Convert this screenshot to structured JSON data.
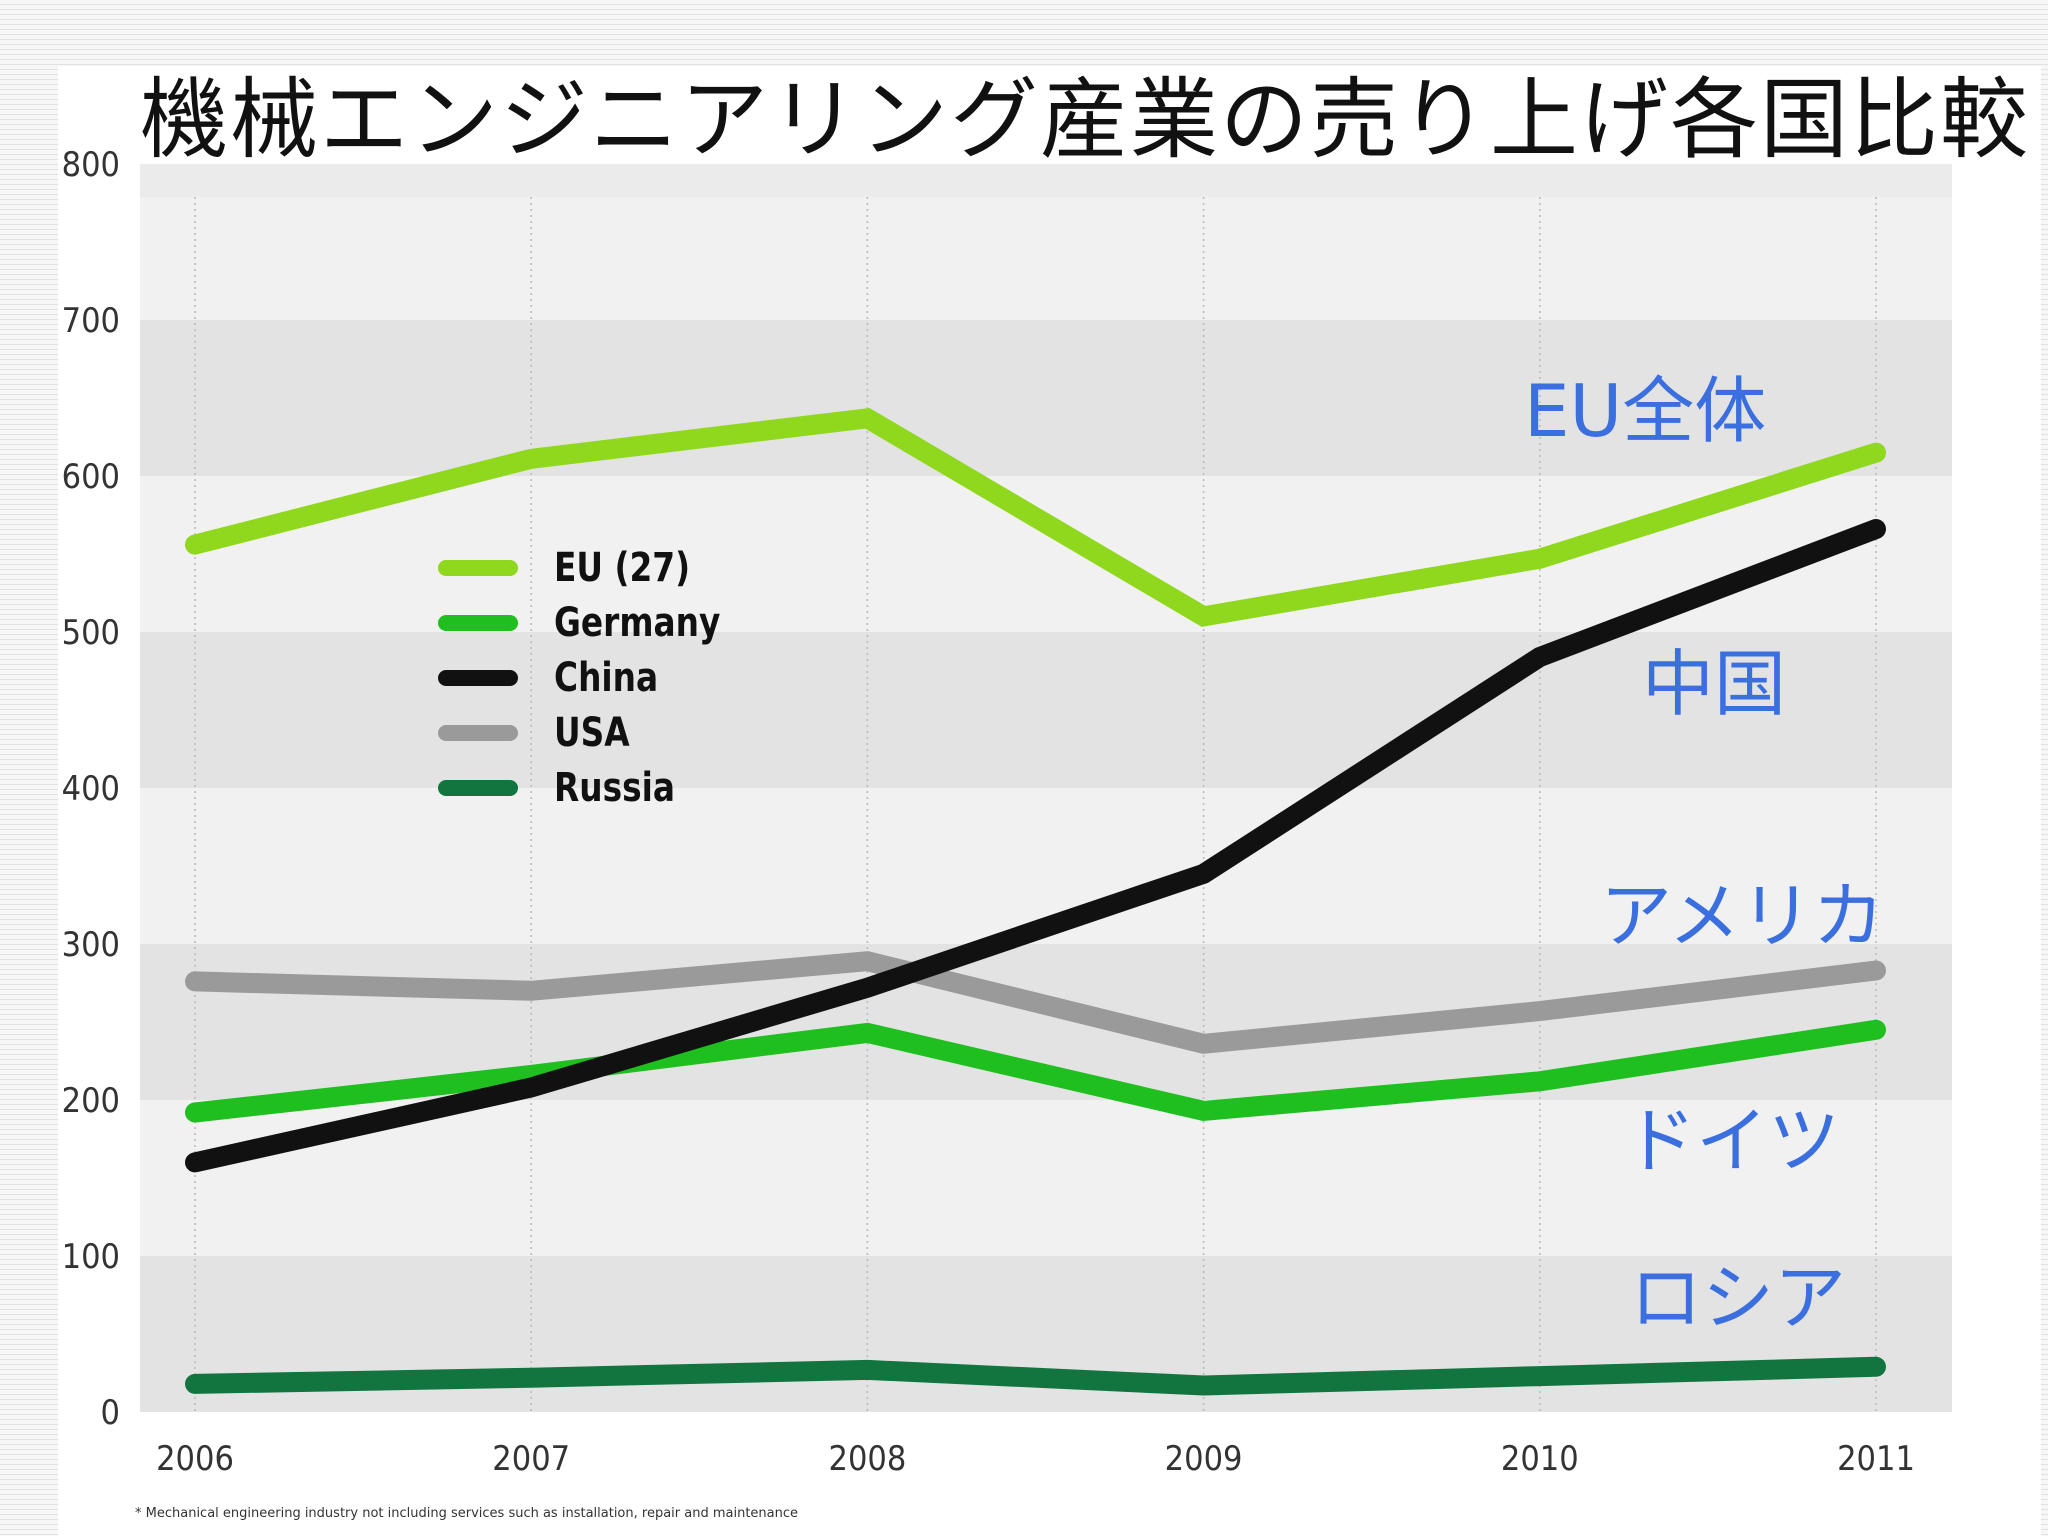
{
  "title": "機械エンジニアリング産業の売り上げ各国比較",
  "footnote": "* Mechanical engineering industry not including services such as installation, repair and maintenance",
  "chart_data": {
    "type": "line",
    "x": [
      2006,
      2007,
      2008,
      2009,
      2010,
      2011
    ],
    "y_ticks": [
      0,
      100,
      200,
      300,
      400,
      500,
      600,
      700,
      800
    ],
    "ylim": [
      0,
      800
    ],
    "grid": "alternating horizontal bands with dotted vertical lines",
    "legend_position": "upper-left",
    "series": [
      {
        "name": "EU (27)",
        "color": "#8fd81d",
        "values": [
          556,
          611,
          637,
          510,
          547,
          615
        ]
      },
      {
        "name": "Germany",
        "color": "#1fbf1f",
        "values": [
          192,
          216,
          243,
          193,
          212,
          245
        ]
      },
      {
        "name": "China",
        "color": "#111111",
        "values": [
          160,
          208,
          272,
          345,
          484,
          566
        ]
      },
      {
        "name": "USA",
        "color": "#9a9a9a",
        "values": [
          276,
          270,
          289,
          236,
          257,
          283
        ]
      },
      {
        "name": "Russia",
        "color": "#127540",
        "values": [
          18,
          22,
          27,
          17,
          23,
          29
        ]
      }
    ]
  },
  "annotations": [
    {
      "text": "EU全体",
      "color": "#3b6fe0"
    },
    {
      "text": "中国",
      "color": "#3b6fe0"
    },
    {
      "text": "アメリカ",
      "color": "#3b6fe0"
    },
    {
      "text": "ドイツ",
      "color": "#3b6fe0"
    },
    {
      "text": "ロシア",
      "color": "#3b6fe0"
    }
  ]
}
